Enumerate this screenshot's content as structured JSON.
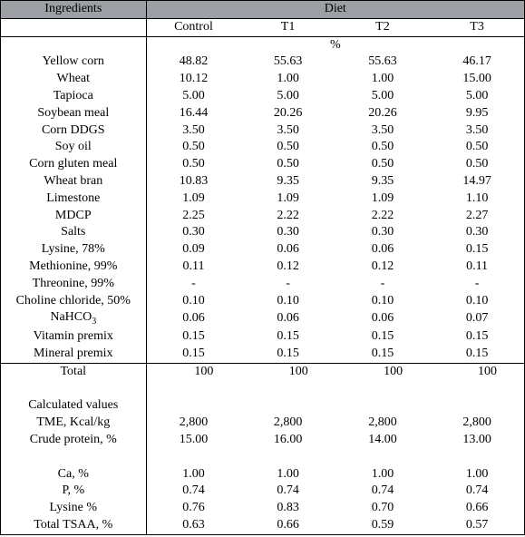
{
  "header": {
    "ingredients": "Ingredients",
    "diet": "Diet",
    "control": "Control",
    "t1": "T1",
    "t2": "T2",
    "t3": "T3",
    "pct": "%"
  },
  "rows": [
    {
      "name": "Yellow corn",
      "v": [
        "48.82",
        "55.63",
        "55.63",
        "46.17"
      ]
    },
    {
      "name": "Wheat",
      "v": [
        "10.12",
        "1.00",
        "1.00",
        "15.00"
      ]
    },
    {
      "name": "Tapioca",
      "v": [
        "5.00",
        "5.00",
        "5.00",
        "5.00"
      ]
    },
    {
      "name": "Soybean meal",
      "v": [
        "16.44",
        "20.26",
        "20.26",
        "9.95"
      ]
    },
    {
      "name": "Corn DDGS",
      "v": [
        "3.50",
        "3.50",
        "3.50",
        "3.50"
      ]
    },
    {
      "name": "Soy oil",
      "v": [
        "0.50",
        "0.50",
        "0.50",
        "0.50"
      ]
    },
    {
      "name": "Corn gluten meal",
      "v": [
        "0.50",
        "0.50",
        "0.50",
        "0.50"
      ]
    },
    {
      "name": "Wheat bran",
      "v": [
        "10.83",
        "9.35",
        "9.35",
        "14.97"
      ]
    },
    {
      "name": "Limestone",
      "v": [
        "1.09",
        "1.09",
        "1.09",
        "1.10"
      ]
    },
    {
      "name": "MDCP",
      "v": [
        "2.25",
        "2.22",
        "2.22",
        "2.27"
      ]
    },
    {
      "name": "Salts",
      "v": [
        "0.30",
        "0.30",
        "0.30",
        "0.30"
      ]
    },
    {
      "name": "Lysine, 78%",
      "v": [
        "0.09",
        "0.06",
        "0.06",
        "0.15"
      ]
    },
    {
      "name": "Methionine, 99%",
      "v": [
        "0.11",
        "0.12",
        "0.12",
        "0.11"
      ]
    },
    {
      "name": "Threonine, 99%",
      "v": [
        "-",
        "-",
        "-",
        "-"
      ]
    },
    {
      "name": "Choline chloride, 50%",
      "v": [
        "0.10",
        "0.10",
        "0.10",
        "0.10"
      ]
    },
    {
      "name": "NaHCO",
      "sub": "3",
      "v": [
        "0.06",
        "0.06",
        "0.06",
        "0.07"
      ]
    },
    {
      "name": "Vitamin premix",
      "v": [
        "0.15",
        "0.15",
        "0.15",
        "0.15"
      ]
    },
    {
      "name": "Mineral premix",
      "v": [
        "0.15",
        "0.15",
        "0.15",
        "0.15"
      ]
    }
  ],
  "total": {
    "name": "Total",
    "v": [
      "100",
      "100",
      "100",
      "100"
    ]
  },
  "calc_header": "Calculated values",
  "calc_rows": [
    {
      "name": "TME, Kcal/kg",
      "v": [
        "2,800",
        "2,800",
        "2,800",
        "2,800"
      ]
    },
    {
      "name": "Crude protein, %",
      "v": [
        "15.00",
        "16.00",
        "14.00",
        "13.00"
      ]
    },
    {
      "name": "Ca, %",
      "v": [
        "1.00",
        "1.00",
        "1.00",
        "1.00"
      ]
    },
    {
      "name": "P, %",
      "v": [
        "0.74",
        "0.74",
        "0.74",
        "0.74"
      ]
    },
    {
      "name": "Lysine %",
      "v": [
        "0.76",
        "0.83",
        "0.70",
        "0.66"
      ]
    },
    {
      "name": "Total TSAA, %",
      "v": [
        "0.63",
        "0.66",
        "0.59",
        "0.57"
      ]
    }
  ]
}
